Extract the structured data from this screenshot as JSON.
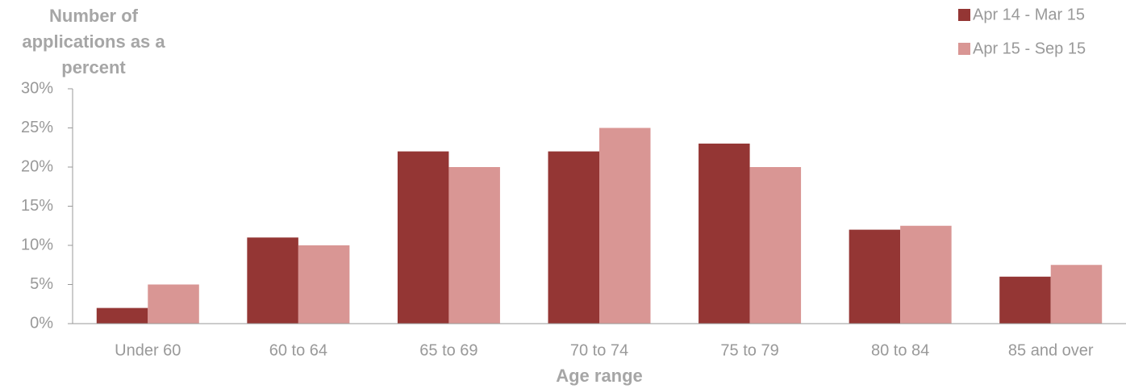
{
  "chart_data": {
    "type": "bar",
    "y_label": "Number of applications as a percent",
    "x_label": "Age range",
    "categories": [
      "Under 60",
      "60 to 64",
      "65 to 69",
      "70 to 74",
      "75 to 79",
      "80 to 84",
      "85 and over"
    ],
    "series": [
      {
        "name": "Apr 14 - Mar 15",
        "color": "#943634",
        "values": [
          2,
          11,
          22,
          22,
          23,
          12,
          6
        ]
      },
      {
        "name": "Apr 15 - Sep 15",
        "color": "#d99694",
        "values": [
          5,
          10,
          20,
          25,
          20,
          12.5,
          7.5
        ]
      }
    ],
    "ylim": [
      0,
      30
    ],
    "yticks": [
      {
        "value": 0,
        "label": "0%"
      },
      {
        "value": 5,
        "label": "5%"
      },
      {
        "value": 10,
        "label": "10%"
      },
      {
        "value": 15,
        "label": "15%"
      },
      {
        "value": 20,
        "label": "20%"
      },
      {
        "value": 25,
        "label": "25%"
      },
      {
        "value": 30,
        "label": "30%"
      }
    ],
    "legend": "top-right"
  }
}
